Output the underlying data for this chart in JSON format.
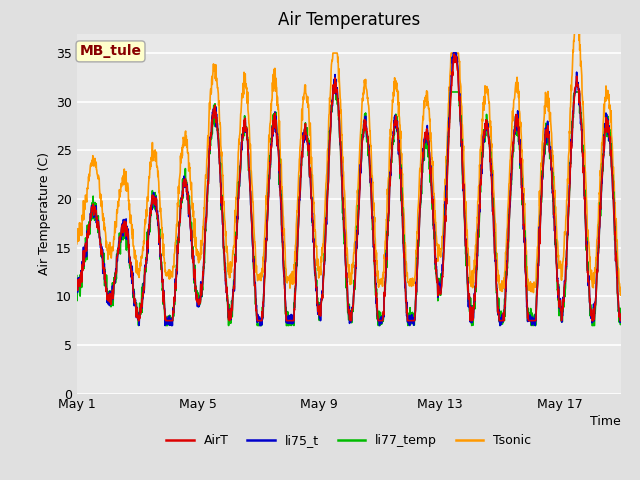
{
  "title": "Air Temperatures",
  "xlabel": "Time",
  "ylabel": "Air Temperature (C)",
  "ylim": [
    0,
    37
  ],
  "yticks": [
    0,
    5,
    10,
    15,
    20,
    25,
    30,
    35
  ],
  "date_labels": [
    "May 1",
    "May 5",
    "May 9",
    "May 13",
    "May 17"
  ],
  "date_ticks_days": [
    0,
    4,
    8,
    12,
    16
  ],
  "total_days": 18,
  "bg_color": "#e0e0e0",
  "plot_bg_color": "#e8e8e8",
  "grid_color": "#ffffff",
  "annotation_text": "MB_tule",
  "annotation_bg": "#ffffcc",
  "annotation_border": "#aaaaaa",
  "annotation_text_color": "#880000",
  "line_colors": {
    "AirT": "#dd0000",
    "li75_t": "#0000cc",
    "li77_temp": "#00bb00",
    "Tsonic": "#ff9900"
  },
  "line_widths": {
    "AirT": 1.2,
    "li75_t": 1.2,
    "li77_temp": 1.2,
    "Tsonic": 1.2
  },
  "legend_pos": "lower center",
  "n_points": 1800
}
